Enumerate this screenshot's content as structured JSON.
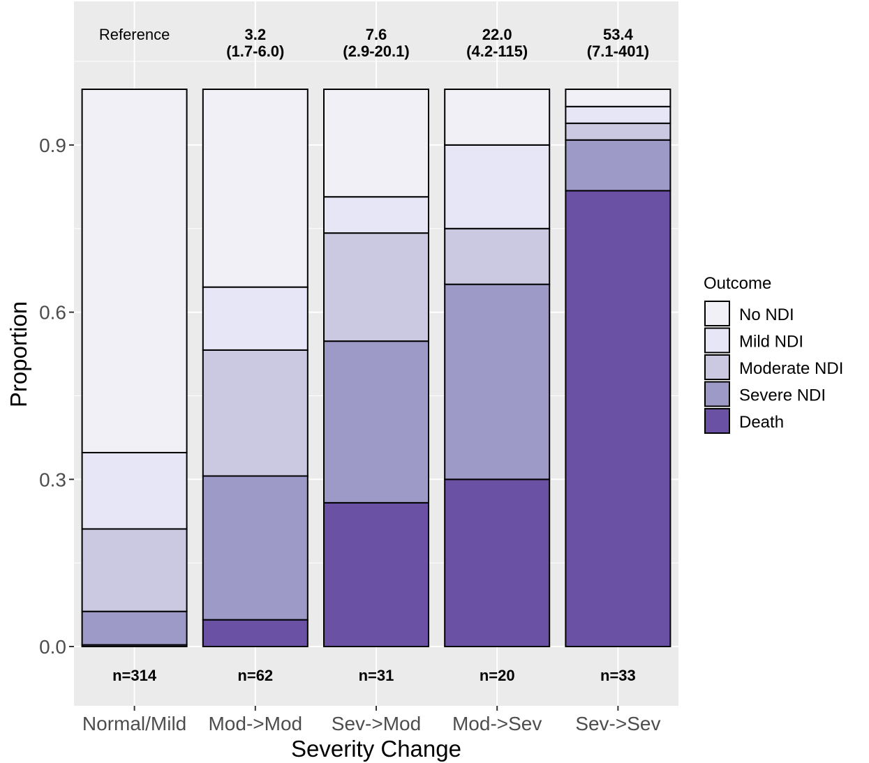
{
  "chart_data": {
    "type": "bar",
    "stacked": true,
    "xlabel": "Severity Change",
    "ylabel": "Proportion",
    "ylim": [
      -0.1,
      1.11
    ],
    "y_ticks": [
      0.0,
      0.3,
      0.6,
      0.9
    ],
    "y_tick_labels": [
      "0.0",
      "0.3",
      "0.6",
      "0.9"
    ],
    "grid": true,
    "legend_position": "right",
    "legend_title": "Outcome",
    "categories": [
      "Normal/Mild",
      "Mod->Mod",
      "Sev->Mod",
      "Mod->Sev",
      "Sev->Sev"
    ],
    "series": [
      {
        "name": "Death",
        "color": "#6a51a3",
        "values": [
          0.003,
          0.048,
          0.258,
          0.3,
          0.818
        ]
      },
      {
        "name": "Severe NDI",
        "color": "#9e9ac8",
        "values": [
          0.06,
          0.258,
          0.29,
          0.35,
          0.091
        ]
      },
      {
        "name": "Moderate NDI",
        "color": "#cbc9e2",
        "values": [
          0.148,
          0.226,
          0.194,
          0.1,
          0.03
        ]
      },
      {
        "name": "Mild NDI",
        "color": "#e6e6f7",
        "values": [
          0.137,
          0.113,
          0.065,
          0.15,
          0.03
        ]
      },
      {
        "name": "No NDI",
        "color": "#f2f0f7",
        "values": [
          0.652,
          0.355,
          0.193,
          0.1,
          0.031
        ]
      }
    ],
    "legend_order": [
      "No NDI",
      "Mild NDI",
      "Moderate NDI",
      "Severe NDI",
      "Death"
    ],
    "top_annotations": [
      {
        "line1": "Reference",
        "line2": "",
        "bold": false
      },
      {
        "line1": "3.2",
        "line2": "(1.7-6.0)",
        "bold": true
      },
      {
        "line1": "7.6",
        "line2": "(2.9-20.1)",
        "bold": true
      },
      {
        "line1": "22.0",
        "line2": "(4.2-115)",
        "bold": true
      },
      {
        "line1": "53.4",
        "line2": "(7.1-401)",
        "bold": true
      }
    ],
    "bottom_annotations": [
      "n=314",
      "n=62",
      "n=31",
      "n=20",
      "n=33"
    ]
  },
  "colors": {
    "panel_background": "#ebebeb",
    "grid_major": "#ffffff",
    "bar_outline": "#000000"
  }
}
